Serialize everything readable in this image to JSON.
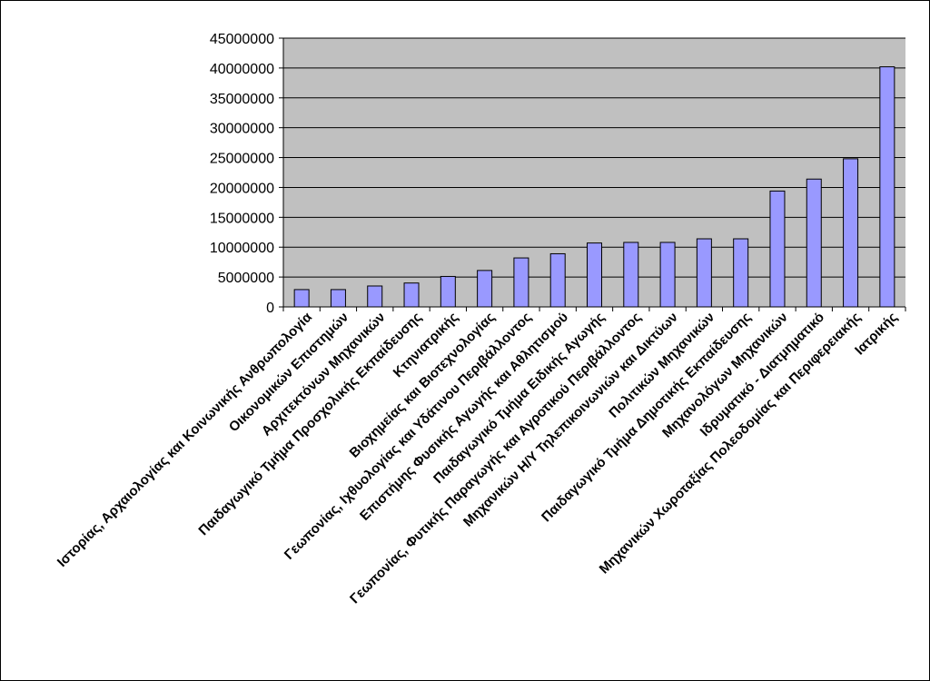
{
  "chart_data": {
    "type": "bar",
    "title": "",
    "xlabel": "",
    "ylabel": "",
    "ylim": [
      0,
      45000000
    ],
    "yticks": [
      0,
      5000000,
      10000000,
      15000000,
      20000000,
      25000000,
      30000000,
      35000000,
      40000000,
      45000000
    ],
    "ytick_labels": [
      "0",
      "5000000",
      "10000000",
      "15000000",
      "20000000",
      "25000000",
      "30000000",
      "35000000",
      "40000000",
      "45000000"
    ],
    "grid": true,
    "legend": "none",
    "plot_background": "#c0c0c0",
    "bar_color": "#9999ff",
    "categories": [
      "Ιστορίας, Αρχαιολογίας και Κοινωνικής Ανθρωπολογία",
      "Οικονομικών Επιστημών",
      "Αρχιτεκτόνων Μηχανικών",
      "Παιδαγωγικό Τμήμα Προσχολικής Εκπαίδευσης",
      "Κτηνιατρικής",
      "Βιοχημείας και Βιοτεχνολογίας",
      "Γεωπονίας, Ιχθυολογίας και Υδάτινου Περιβάλλοντος",
      "Επιστήμης Φυσικής Αγωγής και Αθλητισμού",
      "Παιδαγωγικό Τμήμα Ειδικής Αγωγής",
      "Γεωπονίας, Φυτικής Παραγωγής και Αγροτικού Περιβάλλοντος",
      "Μηχανικών Η/Υ Τηλεπικοινωνιών και Δικτύων",
      "Πολιτικών Μηχανικών",
      "Παιδαγωγικό Τμήμα Δημοτικής Εκπαίδευσης",
      "Μηχανολόγων Μηχανικών",
      "Ιδρυματικό - Διατμηματικό",
      "Μηχανικών Χωροταξίας Πολεοδομίας και Περιφερειακής",
      "Ιατρικής"
    ],
    "values": [
      2900000,
      2900000,
      3500000,
      4000000,
      5100000,
      6100000,
      8200000,
      8900000,
      10700000,
      10800000,
      10800000,
      11400000,
      11400000,
      19400000,
      21400000,
      24800000,
      40200000
    ]
  }
}
